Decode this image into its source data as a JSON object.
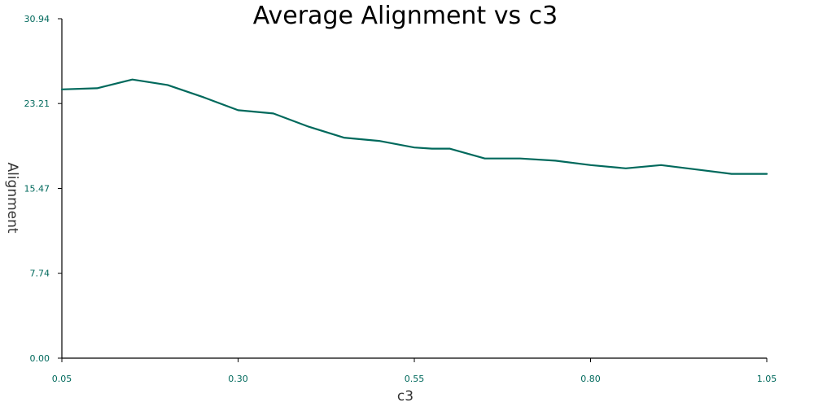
{
  "chart_data": {
    "type": "line",
    "title": "Average Alignment vs c3",
    "xlabel": "c3",
    "ylabel": "Alignment",
    "xlim": [
      0.05,
      1.05
    ],
    "ylim": [
      0.0,
      30.94
    ],
    "x_ticks": [
      "0.05",
      "0.30",
      "0.55",
      "0.80",
      "1.05"
    ],
    "x_tick_values": [
      0.05,
      0.3,
      0.55,
      0.8,
      1.05
    ],
    "y_ticks": [
      "0.00",
      "7.74",
      "15.47",
      "23.21",
      "30.94"
    ],
    "y_tick_values": [
      0.0,
      7.74,
      15.47,
      23.21,
      30.94
    ],
    "grid": false,
    "series": [
      {
        "color": "#00695c",
        "x": [
          0.05,
          0.1,
          0.15,
          0.2,
          0.25,
          0.3,
          0.35,
          0.4,
          0.45,
          0.5,
          0.55,
          0.575,
          0.6,
          0.65,
          0.7,
          0.75,
          0.8,
          0.85,
          0.9,
          0.95,
          1.0,
          1.05
        ],
        "y": [
          24.5,
          24.6,
          25.4,
          24.9,
          23.8,
          22.6,
          22.3,
          21.1,
          20.1,
          19.8,
          19.2,
          19.1,
          19.1,
          18.2,
          18.2,
          18.0,
          17.6,
          17.3,
          17.6,
          17.2,
          16.8,
          16.8
        ]
      }
    ],
    "colors": {
      "axis": "#000000",
      "tick_label": "#00695c",
      "line": "#00695c"
    }
  }
}
